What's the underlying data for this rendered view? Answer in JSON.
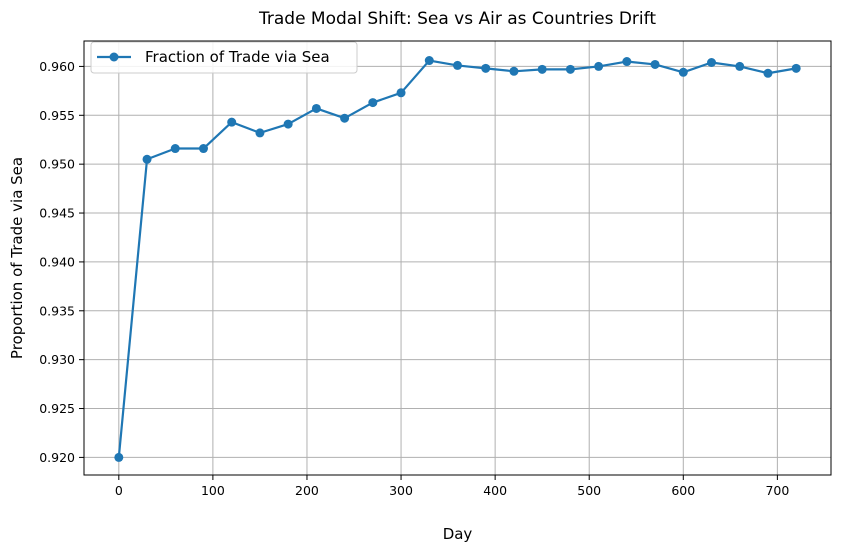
{
  "chart_data": {
    "type": "line",
    "title": "Trade Modal Shift: Sea vs Air as Countries Drift",
    "xlabel": "Day",
    "ylabel": "Proportion of Trade via Sea",
    "xlim": [
      -37,
      757
    ],
    "ylim": [
      0.9182,
      0.9626
    ],
    "x_ticks": [
      0,
      100,
      200,
      300,
      400,
      500,
      600,
      700
    ],
    "y_ticks": [
      0.92,
      0.925,
      0.93,
      0.935,
      0.94,
      0.945,
      0.95,
      0.955,
      0.96
    ],
    "x_tick_labels": [
      "0",
      "100",
      "200",
      "300",
      "400",
      "500",
      "600",
      "700"
    ],
    "y_tick_labels": [
      "0.920",
      "0.925",
      "0.930",
      "0.935",
      "0.940",
      "0.945",
      "0.950",
      "0.955",
      "0.960"
    ],
    "grid": true,
    "legend_position": "top-left",
    "color": "#1f77b4",
    "series": [
      {
        "name": "Fraction of Trade via Sea",
        "x": [
          0,
          30,
          60,
          90,
          120,
          150,
          180,
          210,
          240,
          270,
          300,
          330,
          360,
          390,
          420,
          450,
          480,
          510,
          540,
          570,
          600,
          630,
          660,
          690,
          720
        ],
        "y": [
          0.92,
          0.9505,
          0.9516,
          0.9516,
          0.9543,
          0.9532,
          0.9541,
          0.9557,
          0.9547,
          0.9563,
          0.9573,
          0.9606,
          0.9601,
          0.9598,
          0.9595,
          0.9597,
          0.9597,
          0.96,
          0.9605,
          0.9602,
          0.9594,
          0.9604,
          0.96,
          0.9593,
          0.9598
        ]
      }
    ]
  }
}
